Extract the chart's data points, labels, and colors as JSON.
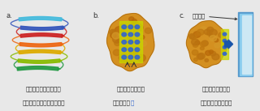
{
  "background_color": "#e8e8e8",
  "panel_bg": "#e8e8e8",
  "panel_labels": [
    "a.",
    "b.",
    "c."
  ],
  "captions": [
    [
      "イシカリガマノホタケ",
      "不凍タンパク質の立体構造"
    ],
    [
      "氷結晶と吸着する",
      "部位にある水"
    ],
    [
      "不凍タンパク質と",
      "氷結晶の吸着モデル"
    ]
  ],
  "water_color": "#3366cc",
  "ice_color_outer": "#5599cc",
  "ice_color_inner": "#88ccee",
  "ice_color_light": "#cce8f4",
  "arrow_color": "#1a55aa",
  "protein_color": "#d49020",
  "protein_dark": "#a06010",
  "protein_bump": "#b87018",
  "yellow_face": "#c8d400",
  "helix_colors": [
    "#44bbdd",
    "#3355bb",
    "#cc2222",
    "#ee6611",
    "#ddaa00",
    "#88bb00",
    "#229944"
  ],
  "loop_color": "#88bb44",
  "font_family": "sans-serif"
}
